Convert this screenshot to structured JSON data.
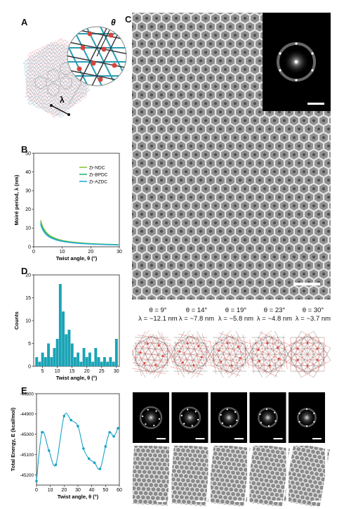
{
  "panels": {
    "a": {
      "label": "A",
      "theta_symbol": "θ",
      "lambda_symbol": "λ"
    },
    "b": {
      "label": "B"
    },
    "c": {
      "label": "C"
    },
    "d": {
      "label": "D"
    },
    "e": {
      "label": "E"
    }
  },
  "chart_data": [
    {
      "id": "B",
      "type": "line",
      "xlabel": "Twist angle, θ (°)",
      "ylabel": "Moiré period, λ (nm)",
      "xlim": [
        0,
        30
      ],
      "ylim": [
        0,
        50
      ],
      "xticks": [
        "0",
        "10",
        "20",
        "30"
      ],
      "yticks": [
        "0",
        "10",
        "20",
        "30",
        "40",
        "50"
      ],
      "legend_position": "top-right",
      "series": [
        {
          "name": "Zr-NDC",
          "color": "#8dc63f",
          "a_nm": 0.6
        },
        {
          "name": "Zr-BPDC",
          "color": "#2bb673",
          "a_nm": 0.55
        },
        {
          "name": "Zr-AZDC",
          "color": "#27aae1",
          "a_nm": 0.5
        }
      ]
    },
    {
      "id": "D",
      "type": "bar",
      "xlabel": "Twist angle, θ (°)",
      "ylabel": "Counts",
      "xlim": [
        2,
        31
      ],
      "ylim": [
        0,
        20
      ],
      "xticks": [
        "5",
        "10",
        "15",
        "20",
        "25",
        "30"
      ],
      "yticks": [
        "0",
        "5",
        "10",
        "15",
        "20"
      ],
      "color": "#1aa3b5",
      "x": [
        3,
        4,
        5,
        6,
        7,
        8,
        9,
        10,
        11,
        12,
        13,
        14,
        15,
        16,
        17,
        18,
        19,
        20,
        21,
        22,
        23,
        24,
        25,
        26,
        27,
        28,
        29,
        30
      ],
      "values": [
        2,
        1,
        3,
        2,
        5,
        2,
        4,
        6,
        18,
        12,
        7,
        8,
        5,
        2,
        3,
        1,
        4,
        2,
        3,
        1,
        4,
        2,
        1,
        2,
        1,
        2,
        1,
        6
      ]
    },
    {
      "id": "E",
      "type": "line",
      "xlabel": "Twist angle, θ (°)",
      "ylabel": "Total Energy, E (kcal/mol)",
      "xlim": [
        0,
        60
      ],
      "ylim": [
        -45250,
        -44800
      ],
      "xticks": [
        "0",
        "10",
        "20",
        "30",
        "40",
        "50",
        "60"
      ],
      "yticks": [
        "-44800",
        "-44900",
        "-45000",
        "-45100",
        "-45200"
      ],
      "color": "#1aa3c5",
      "x": [
        0,
        4,
        9,
        14,
        20,
        25,
        30,
        34,
        38,
        42,
        46,
        50,
        53,
        56,
        59
      ],
      "values": [
        -45230,
        -44990,
        -45080,
        -45150,
        -44910,
        -44930,
        -44960,
        -45070,
        -45120,
        -45140,
        -45170,
        -45060,
        -44990,
        -45010,
        -44970
      ]
    }
  ],
  "panel_c": {
    "scale_bar": "",
    "columns": [
      {
        "theta": "θ = 9°",
        "lambda": "λ = ~12.1 nm"
      },
      {
        "theta": "θ = 14°",
        "lambda": "λ = ~7.8 nm"
      },
      {
        "theta": "θ = 19°",
        "lambda": "λ = ~5.8 nm"
      },
      {
        "theta": "θ = 23°",
        "lambda": "λ = ~4.8 nm"
      },
      {
        "theta": "θ = 30°",
        "lambda": "λ = ~3.7 nm"
      }
    ]
  }
}
